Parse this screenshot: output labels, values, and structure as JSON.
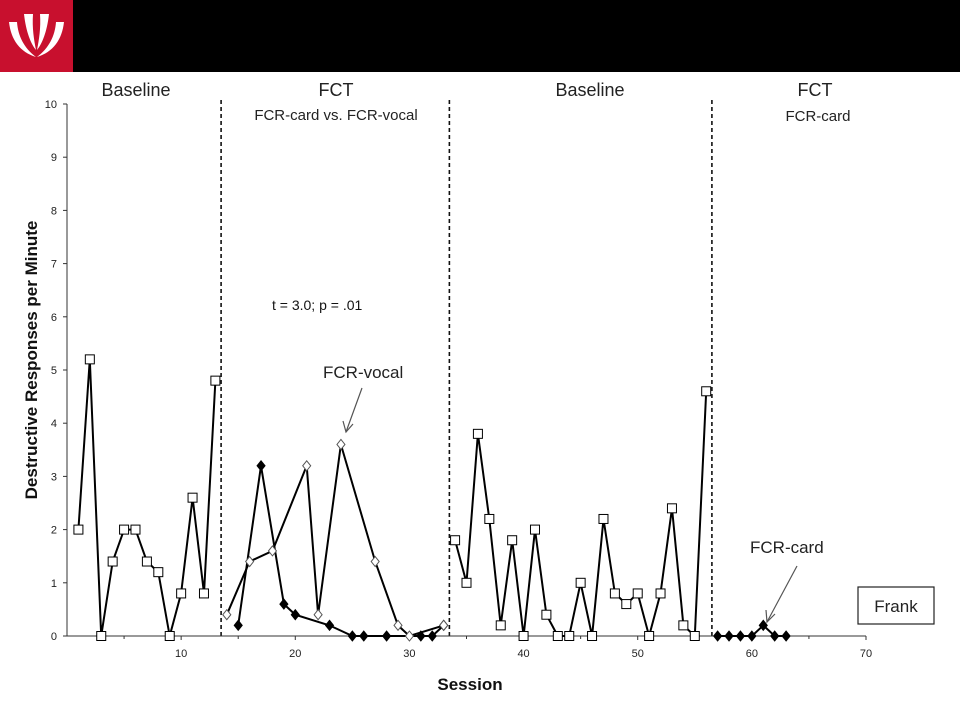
{
  "header": {
    "logo_icon": "university-logo-icon",
    "bar_color": "#000000",
    "logo_color": "#c8102e"
  },
  "chart_data": {
    "type": "line",
    "title": "",
    "xlabel": "Session",
    "ylabel": "Destructive Responses per Minute",
    "xlim": [
      0,
      70
    ],
    "ylim": [
      0,
      10
    ],
    "x_ticks": [
      "10",
      "20",
      "30",
      "40",
      "50",
      "60",
      "70"
    ],
    "y_ticks": [
      "0",
      "1",
      "2",
      "3",
      "4",
      "5",
      "6",
      "7",
      "8",
      "9",
      "10"
    ],
    "grid": false,
    "legend": "none",
    "phase_lines_x": [
      13.5,
      33.5,
      56.5
    ],
    "phases": [
      {
        "label": "Baseline",
        "sub": "",
        "x": 7
      },
      {
        "label": "FCT",
        "sub": "FCR-card vs. FCR-vocal",
        "x": 23.5
      },
      {
        "label": "Baseline",
        "sub": "",
        "x": 45
      },
      {
        "label": "FCT",
        "sub": "FCR-card",
        "x": 63
      }
    ],
    "annotations": {
      "stat": "t = 3.0; p = .01",
      "fcr_vocal": "FCR-vocal",
      "fcr_card": "FCR-card",
      "participant": "Frank"
    },
    "series": [
      {
        "marker": "square-open",
        "segments": [
          {
            "x": [
              1,
              2,
              3,
              4,
              5,
              6,
              7,
              8,
              9,
              10,
              11,
              12,
              13
            ],
            "y": [
              2,
              5.2,
              0,
              1.4,
              2,
              2,
              1.4,
              1.2,
              0,
              0.8,
              2.6,
              0.8,
              4.8
            ]
          },
          {
            "x": [
              34,
              35,
              36,
              37,
              38,
              39,
              40,
              41,
              42,
              43,
              44,
              45,
              46,
              47,
              48,
              49,
              50,
              51,
              52,
              53,
              54,
              55,
              56
            ],
            "y": [
              1.8,
              1,
              3.8,
              2.2,
              0.2,
              1.8,
              0,
              2,
              0.4,
              0,
              0,
              1,
              0,
              2.2,
              0.8,
              0.6,
              0.8,
              0,
              0.8,
              2.4,
              0.2,
              0,
              4.6
            ]
          }
        ]
      },
      {
        "marker": "diamond-filled",
        "segments": [
          {
            "x": [
              15,
              17,
              19,
              20,
              23,
              25,
              26,
              28,
              31,
              32,
              33
            ],
            "y": [
              0.2,
              3.2,
              0.6,
              0.4,
              0.2,
              0,
              0,
              0,
              0,
              0,
              0.2
            ]
          },
          {
            "x": [
              57,
              58,
              59,
              60,
              61,
              62,
              63
            ],
            "y": [
              0,
              0,
              0,
              0,
              0.2,
              0,
              0
            ]
          }
        ]
      },
      {
        "marker": "diamond-open",
        "segments": [
          {
            "x": [
              14,
              16,
              18,
              21,
              22,
              24,
              27,
              29,
              30,
              33
            ],
            "y": [
              0.4,
              1.4,
              1.6,
              3.2,
              0.4,
              3.6,
              1.4,
              0.2,
              0,
              0.2
            ]
          }
        ]
      }
    ]
  }
}
